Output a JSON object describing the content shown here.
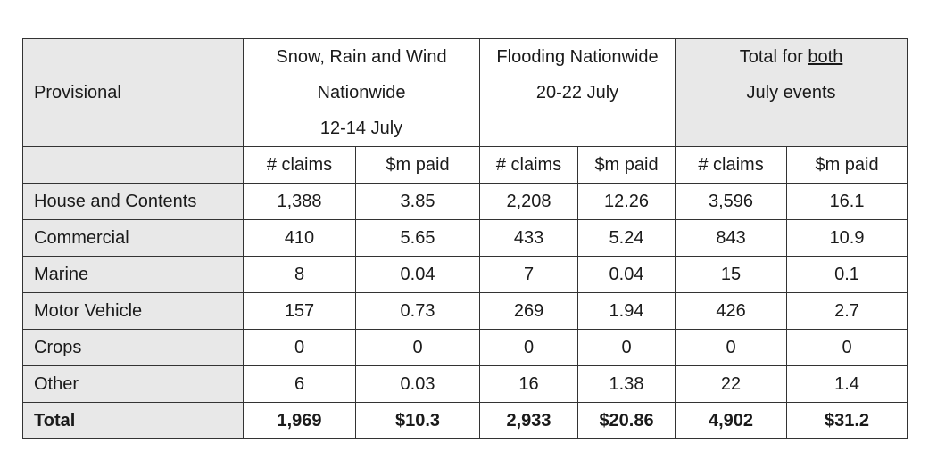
{
  "header": {
    "provisional": "Provisional",
    "group1": [
      "Snow, Rain and Wind",
      "Nationwide",
      "12-14 July"
    ],
    "group2": [
      "Flooding Nationwide",
      "20-22 July"
    ],
    "group3_prefix": "Total for ",
    "group3_underlined": "both",
    "group3_line2": "July events"
  },
  "subheaders": [
    "# claims",
    "$m paid",
    "# claims",
    "$m paid",
    "# claims",
    "$m paid"
  ],
  "rows": [
    {
      "label": "House and Contents",
      "values": [
        "1,388",
        "3.85",
        "2,208",
        "12.26",
        "3,596",
        "16.1"
      ]
    },
    {
      "label": "Commercial",
      "values": [
        "410",
        "5.65",
        "433",
        "5.24",
        "843",
        "10.9"
      ]
    },
    {
      "label": "Marine",
      "values": [
        "8",
        "0.04",
        "7",
        "0.04",
        "15",
        "0.1"
      ]
    },
    {
      "label": "Motor Vehicle",
      "values": [
        "157",
        "0.73",
        "269",
        "1.94",
        "426",
        "2.7"
      ]
    },
    {
      "label": "Crops",
      "values": [
        "0",
        "0",
        "0",
        "0",
        "0",
        "0"
      ]
    },
    {
      "label": "Other",
      "values": [
        "6",
        "0.03",
        "16",
        "1.38",
        "22",
        "1.4"
      ]
    }
  ],
  "total": {
    "label": "Total",
    "values": [
      "1,969",
      "$10.3",
      "2,933",
      "$20.86",
      "4,902",
      "$31.2"
    ]
  }
}
